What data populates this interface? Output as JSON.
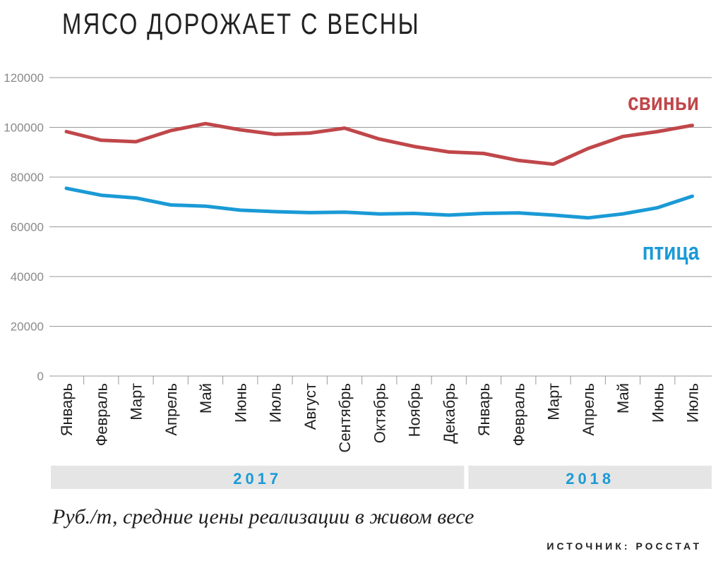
{
  "title": "МЯСО ДОРОЖАЕТ С ВЕСНЫ",
  "subtitle": "Руб./т, средние цены реализации в живом весе",
  "source": "ИСТОЧНИК: РОССТАТ",
  "colors": {
    "pigs": "#c0474a",
    "poultry": "#1a9ad6",
    "grid": "#999999",
    "year_band": "#e5e5e5"
  },
  "chart_data": {
    "type": "line",
    "x": [
      "Январь",
      "Февраль",
      "Март",
      "Апрель",
      "Май",
      "Июнь",
      "Июль",
      "Август",
      "Сентябрь",
      "Октябрь",
      "Ноябрь",
      "Декабрь",
      "Январь",
      "Февраль",
      "Март",
      "Апрель",
      "Май",
      "Июнь",
      "Июль"
    ],
    "years": [
      {
        "label": "2017",
        "from": 0,
        "to": 11
      },
      {
        "label": "2018",
        "from": 12,
        "to": 18
      }
    ],
    "series": [
      {
        "name": "свиньи",
        "values": [
          98300,
          94800,
          94200,
          98700,
          101500,
          99000,
          97200,
          97700,
          99700,
          95300,
          92300,
          90100,
          89500,
          86700,
          85200,
          91500,
          96300,
          98300,
          100800
        ]
      },
      {
        "name": "птица",
        "values": [
          75500,
          72700,
          71600,
          68800,
          68300,
          66700,
          66100,
          65700,
          65900,
          65200,
          65400,
          64700,
          65400,
          65600,
          64700,
          63600,
          65200,
          67700,
          72300
        ]
      }
    ],
    "ylim": [
      0,
      120000
    ],
    "yticks": [
      0,
      20000,
      40000,
      60000,
      80000,
      100000,
      120000
    ],
    "grid": true,
    "legend": "direct labels right"
  }
}
